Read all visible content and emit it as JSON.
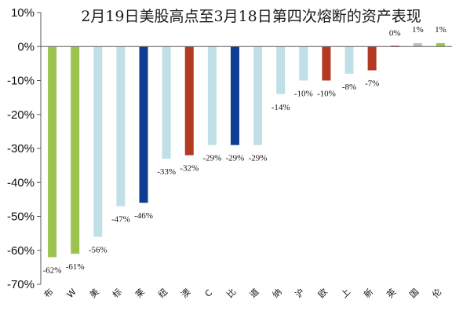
{
  "chart_data": {
    "type": "bar",
    "title": "2月19日美股高点至3月18日第四次熔断的资产表现",
    "xlabel": "",
    "ylabel": "",
    "ylim": [
      -70,
      10
    ],
    "y_ticks": [
      10,
      0,
      -10,
      -20,
      -30,
      -40,
      -50,
      -60,
      -70
    ],
    "y_tick_labels": [
      "10%",
      "0%",
      "-10%",
      "-20%",
      "-30%",
      "-40%",
      "-50%",
      "-60%",
      "-70%"
    ],
    "grid": false,
    "legend": "none",
    "categories": [
      "布",
      "W",
      "美",
      "标",
      "莱",
      "纽",
      "澳",
      "C",
      "比",
      "道",
      "纳",
      "沪",
      "欧",
      "上",
      "新",
      "英",
      "国",
      "伦"
    ],
    "values": [
      -62,
      -61,
      -56,
      -47,
      -46,
      -33,
      -32,
      -29,
      -29,
      -29,
      -14,
      -10,
      -10,
      -8,
      -7,
      0,
      1,
      1
    ],
    "value_labels": [
      "-62%",
      "-61%",
      "-56%",
      "-47%",
      "-46%",
      "-33%",
      "-32%",
      "-29%",
      "-29%",
      "-29%",
      "-14%",
      "-10%",
      "-10%",
      "-8%",
      "-7%",
      "0%",
      "1%",
      "1%"
    ],
    "bar_colors": [
      "#9bc44f",
      "#9bc44f",
      "#c1dfe6",
      "#c1dfe6",
      "#0f3d91",
      "#c1dfe6",
      "#b23a22",
      "#c1dfe6",
      "#0f3d91",
      "#c1dfe6",
      "#c1dfe6",
      "#c1dfe6",
      "#b23a22",
      "#c1dfe6",
      "#b23a22",
      "#b23a22",
      "#bdbdbd",
      "#9bc44f"
    ],
    "axis_color": "#5a5a5a"
  }
}
